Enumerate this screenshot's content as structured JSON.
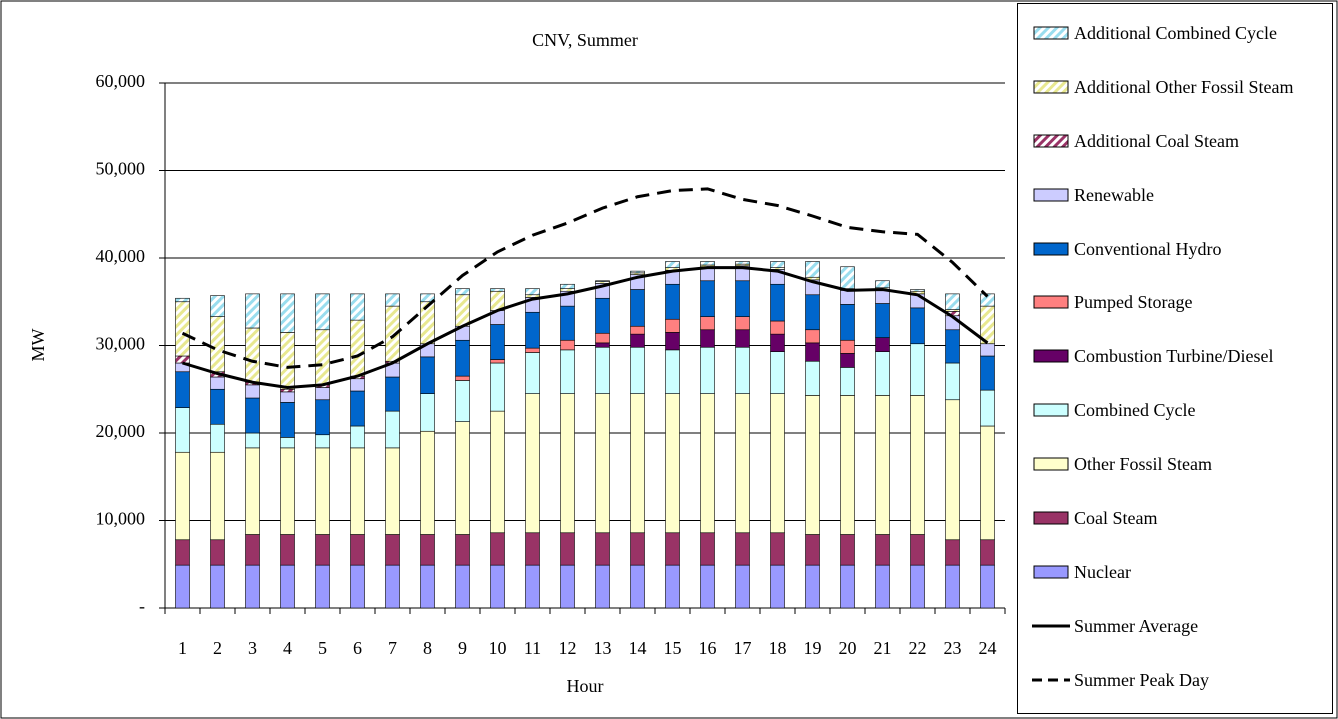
{
  "chart_data": {
    "type": "bar",
    "stacked": true,
    "title": "CNV, Summer",
    "x_label": "Hour",
    "y_label": "MW",
    "categories": [
      "1",
      "2",
      "3",
      "4",
      "5",
      "6",
      "7",
      "8",
      "9",
      "10",
      "11",
      "12",
      "13",
      "14",
      "15",
      "16",
      "17",
      "18",
      "19",
      "20",
      "21",
      "22",
      "23",
      "24"
    ],
    "ylim": [
      0,
      60000
    ],
    "yticks": [
      {
        "value": 0,
        "label": "-"
      },
      {
        "value": 10000,
        "label": "10,000"
      },
      {
        "value": 20000,
        "label": "20,000"
      },
      {
        "value": 30000,
        "label": "30,000"
      },
      {
        "value": 40000,
        "label": "40,000"
      },
      {
        "value": 50000,
        "label": "50,000"
      },
      {
        "value": 60000,
        "label": "60,000"
      }
    ],
    "grid": true,
    "legend": "right",
    "series": [
      {
        "name": "Nuclear",
        "color": "#9999ff",
        "values": [
          4900,
          4900,
          4900,
          4900,
          4900,
          4900,
          4900,
          4900,
          4900,
          4900,
          4900,
          4900,
          4900,
          4900,
          4900,
          4900,
          4900,
          4900,
          4900,
          4900,
          4900,
          4900,
          4900,
          4900
        ]
      },
      {
        "name": "Coal Steam",
        "color": "#993366",
        "values": [
          2900,
          2900,
          3500,
          3500,
          3500,
          3500,
          3500,
          3500,
          3500,
          3700,
          3700,
          3700,
          3700,
          3700,
          3700,
          3700,
          3700,
          3700,
          3500,
          3500,
          3500,
          3500,
          2900,
          2900
        ]
      },
      {
        "name": "Other Fossil Steam",
        "color": "#ffffcc",
        "values": [
          10000,
          10000,
          9900,
          9900,
          9900,
          9900,
          9900,
          11800,
          12900,
          13900,
          15900,
          15900,
          15900,
          15900,
          15900,
          15900,
          15900,
          15900,
          15900,
          15900,
          15900,
          15900,
          16000,
          13000
        ]
      },
      {
        "name": "Combined Cycle",
        "color": "#ccffff",
        "values": [
          5100,
          3200,
          1700,
          1200,
          1500,
          2500,
          4200,
          4300,
          4700,
          5500,
          4700,
          5000,
          5300,
          5300,
          5000,
          5300,
          5300,
          4800,
          3900,
          3200,
          5000,
          5900,
          4200,
          4100
        ]
      },
      {
        "name": "Combustion Turbine/Diesel",
        "color": "#660066",
        "values": [
          0,
          0,
          0,
          0,
          0,
          0,
          0,
          0,
          0,
          0,
          0,
          0,
          500,
          1500,
          2000,
          2000,
          2000,
          2000,
          2100,
          1600,
          1600,
          0,
          0,
          0
        ]
      },
      {
        "name": "Pumped Storage",
        "color": "#ff8080",
        "values": [
          0,
          0,
          0,
          0,
          0,
          0,
          0,
          0,
          500,
          400,
          500,
          1100,
          1100,
          900,
          1500,
          1500,
          1500,
          1500,
          1500,
          1500,
          0,
          0,
          0,
          0
        ]
      },
      {
        "name": "Conventional Hydro",
        "color": "#0066cc",
        "values": [
          4100,
          4000,
          4000,
          4000,
          4000,
          4000,
          3900,
          4200,
          4100,
          4000,
          4100,
          3900,
          4000,
          4200,
          4000,
          4100,
          4100,
          4200,
          4000,
          4100,
          3900,
          4100,
          3800,
          3900
        ]
      },
      {
        "name": "Renewable",
        "color": "#ccccff",
        "values": [
          1000,
          1400,
          1500,
          1200,
          1400,
          1400,
          1600,
          1500,
          1600,
          1600,
          1700,
          1700,
          1700,
          1700,
          1600,
          1600,
          1700,
          1700,
          1700,
          1600,
          1500,
          1600,
          1600,
          1400
        ]
      },
      {
        "name": "Additional Coal Steam",
        "color": "#993366",
        "hatch": true,
        "values": [
          800,
          600,
          300,
          300,
          300,
          300,
          200,
          0,
          0,
          0,
          0,
          0,
          0,
          0,
          0,
          0,
          0,
          0,
          0,
          0,
          0,
          0,
          500,
          0
        ]
      },
      {
        "name": "Additional Other Fossil Steam",
        "color": "#e8e890",
        "hatch": true,
        "values": [
          6200,
          6300,
          6200,
          6500,
          6300,
          6400,
          6300,
          4800,
          3600,
          2200,
          300,
          300,
          200,
          200,
          300,
          200,
          200,
          200,
          300,
          200,
          300,
          300,
          200,
          4300
        ]
      },
      {
        "name": "Additional Combined Cycle",
        "color": "#99ddee",
        "hatch": true,
        "values": [
          400,
          2400,
          3900,
          4400,
          4100,
          3000,
          1400,
          900,
          700,
          300,
          700,
          500,
          100,
          200,
          700,
          400,
          300,
          700,
          1800,
          2500,
          800,
          200,
          1800,
          1400
        ]
      }
    ],
    "lines": [
      {
        "name": "Summer Average",
        "color": "#000000",
        "dashed": false,
        "values": [
          28000,
          26800,
          25800,
          25200,
          25500,
          26500,
          28000,
          30200,
          32200,
          34000,
          35300,
          35900,
          36800,
          37800,
          38500,
          38900,
          38900,
          38500,
          37300,
          36300,
          36400,
          35800,
          33300,
          30300
        ]
      },
      {
        "name": "Summer Peak Day",
        "color": "#000000",
        "dashed": true,
        "values": [
          31400,
          29500,
          28200,
          27500,
          27800,
          28800,
          31000,
          34500,
          38000,
          40700,
          42600,
          44000,
          45700,
          47000,
          47700,
          47900,
          46700,
          46000,
          44800,
          43500,
          43000,
          42700,
          39500,
          35600
        ]
      }
    ]
  }
}
